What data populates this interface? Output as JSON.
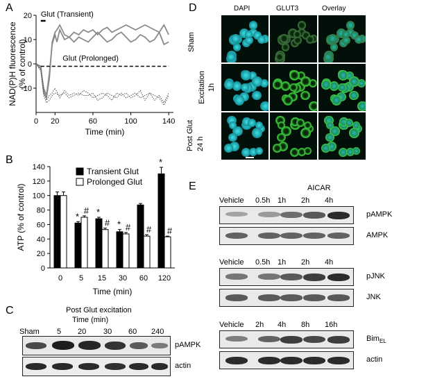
{
  "panels": {
    "a": "A",
    "b": "B",
    "c": "C",
    "d": "D",
    "e": "E"
  },
  "colors": {
    "bar_transient": "#000000",
    "bar_prolonged": "#ffffff",
    "trace_gray": "#8a8a8a",
    "dapi": "#29c2c9",
    "glut3": "#3ad83a"
  },
  "chart_data": [
    {
      "panel": "A",
      "type": "line",
      "title": "",
      "xlabel": "Time (min)",
      "ylabel": "NAD(P)H fluorescence\n(% of control)",
      "xlim": [
        0,
        145
      ],
      "ylim": [
        -20,
        20
      ],
      "xticks": [
        0,
        20,
        60,
        100,
        140
      ],
      "yticks": [
        -10,
        0,
        10,
        20
      ],
      "annotations": [
        "Glut (Transient)",
        "Glut (Prolonged)"
      ],
      "series": [
        {
          "style": "solid gray",
          "x": [
            0,
            5,
            8,
            11,
            14,
            17,
            20,
            22,
            25,
            30,
            35,
            40,
            45,
            50,
            55,
            60,
            65,
            70,
            75,
            80,
            85,
            90,
            95,
            100,
            105,
            110,
            115,
            120,
            125,
            130,
            135,
            140
          ],
          "y": [
            0,
            -2,
            -10,
            -13,
            -4,
            8,
            12,
            9,
            14,
            10,
            11,
            9,
            11,
            10,
            9,
            11,
            13,
            11,
            9,
            10,
            12,
            13,
            11,
            9,
            10,
            12,
            11,
            9,
            10,
            13,
            8,
            9
          ]
        },
        {
          "style": "solid gray",
          "x": [
            0,
            5,
            8,
            11,
            14,
            17,
            20,
            22,
            25,
            30,
            35,
            40,
            45,
            50,
            55,
            60,
            65,
            70,
            75,
            80,
            85,
            90,
            95,
            100,
            105,
            110,
            115,
            120,
            125,
            130,
            135,
            140
          ],
          "y": [
            0,
            -1,
            -12,
            -14,
            -6,
            9,
            13,
            14,
            16,
            12,
            11,
            13,
            12,
            14,
            13,
            14,
            12,
            14,
            15,
            13,
            14,
            15,
            16,
            15,
            14,
            15,
            16,
            15,
            14,
            13,
            16,
            12
          ]
        },
        {
          "style": "dashed black",
          "x": [
            5,
            140
          ],
          "y": [
            -1,
            -1
          ]
        },
        {
          "style": "dotted",
          "x": [
            0,
            5,
            8,
            11,
            14,
            17,
            20,
            25,
            30,
            35,
            40,
            45,
            50,
            55,
            60,
            65,
            70,
            75,
            80,
            85,
            90,
            95,
            100,
            105,
            110,
            115,
            120,
            125,
            130,
            135,
            140
          ],
          "y": [
            0,
            -2,
            -11,
            -15,
            -13,
            -12,
            -10,
            -14,
            -11,
            -13,
            -12,
            -13,
            -11,
            -12,
            -14,
            -13,
            -12,
            -13,
            -15,
            -12,
            -13,
            -12,
            -14,
            -13,
            -11,
            -15,
            -12,
            -13,
            -14,
            -17,
            -13
          ]
        },
        {
          "style": "dotted",
          "x": [
            0,
            5,
            8,
            11,
            14,
            17,
            20,
            25,
            30,
            35,
            40,
            45,
            50,
            55,
            60,
            65,
            70,
            75,
            80,
            85,
            90,
            95,
            100,
            105,
            110,
            115,
            120,
            125,
            130,
            135,
            140
          ],
          "y": [
            0,
            -3,
            -13,
            -16,
            -15,
            -13,
            -12,
            -13,
            -12,
            -14,
            -13,
            -12,
            -13,
            -13,
            -12,
            -15,
            -14,
            -12,
            -13,
            -14,
            -12,
            -14,
            -13,
            -12,
            -14,
            -13,
            -12,
            -15,
            -13,
            -16,
            -12
          ]
        }
      ]
    },
    {
      "panel": "B",
      "type": "bar",
      "title": "",
      "xlabel": "Time (min)",
      "ylabel": "ATP (% of control)",
      "ylim": [
        0,
        140
      ],
      "yticks": [
        0,
        20,
        40,
        60,
        80,
        100,
        120,
        140
      ],
      "categories": [
        "0",
        "5",
        "15",
        "30",
        "60",
        "120"
      ],
      "legend_position": "top-right",
      "series": [
        {
          "name": "Transient Glut",
          "values": [
            100,
            62,
            68,
            50,
            87,
            130
          ],
          "errors": [
            5,
            2,
            2,
            3,
            2,
            9
          ],
          "marks": [
            "",
            "*",
            "*",
            "*",
            "",
            "*"
          ]
        },
        {
          "name": "Prolonged Glut",
          "values": [
            100,
            70,
            53,
            47,
            44,
            43
          ],
          "errors": [
            5,
            2,
            2,
            2,
            2,
            1
          ],
          "marks": [
            "",
            "#",
            "#",
            "#",
            "#",
            "#"
          ]
        }
      ]
    }
  ],
  "panel_c": {
    "header": "Post Glut excitation",
    "subheader": "Time  (min)",
    "lanes": [
      "Sham",
      "5",
      "20",
      "30",
      "60",
      "240"
    ],
    "rows": [
      "pAMPK",
      "actin"
    ]
  },
  "panel_d": {
    "columns": [
      "DAPI",
      "GLUT3",
      "Overlay"
    ],
    "rows": [
      "Sham",
      "Excitation\n1h",
      "24 h"
    ],
    "side_label": "Post Glut"
  },
  "panel_e": {
    "header": "AICAR",
    "groups": [
      {
        "lanes": [
          "Vehicle",
          "0.5h",
          "1h",
          "2h",
          "4h"
        ],
        "rows": [
          "pAMPK",
          "AMPK"
        ]
      },
      {
        "lanes": [
          "Vehicle",
          "0.5h",
          "1h",
          "2h",
          "4h"
        ],
        "rows": [
          "pJNK",
          "JNK"
        ]
      },
      {
        "lanes": [
          "Vehicle",
          "2h",
          "4h",
          "8h",
          "16h"
        ],
        "rows": [
          "BimEL",
          "actin"
        ]
      }
    ]
  }
}
